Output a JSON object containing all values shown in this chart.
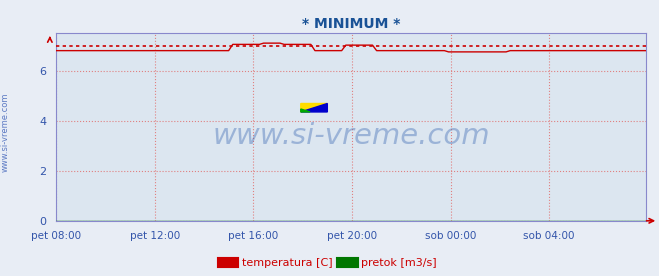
{
  "title": "* MINIMUM *",
  "title_color": "#1a5296",
  "bg_color": "#e8edf5",
  "plot_bg_color": "#dce6f0",
  "grid_color": "#e08080",
  "grid_style": ":",
  "x_labels": [
    "pet 08:00",
    "pet 12:00",
    "pet 16:00",
    "pet 20:00",
    "sob 00:00",
    "sob 04:00"
  ],
  "ylim": [
    0,
    7.5
  ],
  "yticks": [
    0,
    2,
    4,
    6
  ],
  "temp_color": "#cc0000",
  "pretok_color": "#007700",
  "min_line_color": "#cc0000",
  "min_line_style": ":",
  "temp_min_val": 7.0,
  "watermark": "www.si-vreme.com",
  "watermark_color": "#2255aa",
  "watermark_alpha": 0.35,
  "side_text": "www.si-vreme.com",
  "side_text_color": "#4466bb",
  "legend_temp": "temperatura [C]",
  "legend_pretok": "pretok [m3/s]",
  "legend_color": "#cc0000",
  "n_points": 288,
  "tick_positions": [
    0,
    48,
    96,
    144,
    192,
    240
  ],
  "figsize": [
    6.59,
    2.76
  ],
  "dpi": 100,
  "spine_color": "#8888cc",
  "tick_label_color": "#3355aa",
  "ytick_label_color": "#3355aa"
}
